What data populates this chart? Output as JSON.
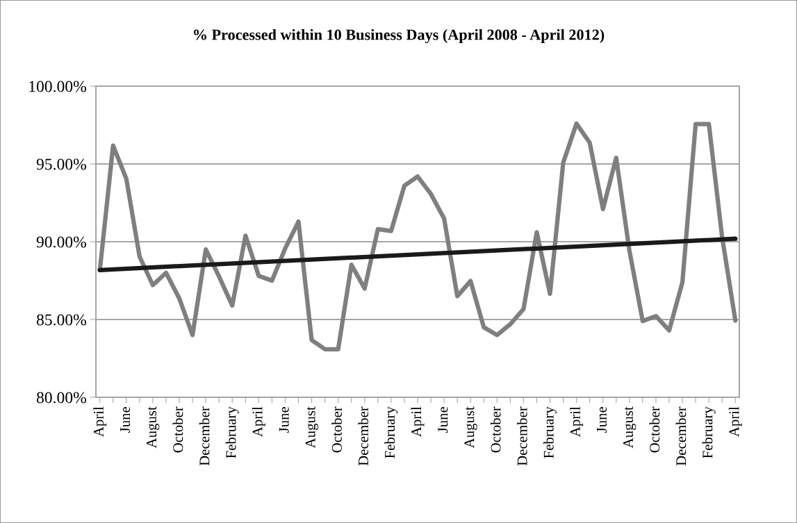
{
  "chart_data": {
    "type": "line",
    "title": "% Processed within 10 Business Days (April 2008 - April 2012)",
    "categories": [
      "April",
      null,
      "June",
      null,
      "August",
      null,
      "October",
      null,
      "December",
      null,
      "February",
      null,
      "April",
      null,
      "June",
      null,
      "August",
      null,
      "October",
      null,
      "December",
      null,
      "February",
      null,
      "April",
      null,
      "June",
      null,
      "August",
      null,
      "October",
      null,
      "December",
      null,
      "February",
      null,
      "April",
      null,
      "June",
      null,
      "August",
      null,
      "October",
      null,
      "December",
      null,
      "February",
      null,
      "April"
    ],
    "series": [
      {
        "color": "#7f7f7f",
        "values": [
          88.18,
          96.18,
          94.04,
          89.04,
          87.21,
          88.0,
          86.35,
          84.0,
          89.5,
          87.77,
          85.9,
          90.39,
          87.8,
          87.5,
          89.57,
          91.29,
          83.68,
          83.09,
          83.09,
          88.52,
          86.99,
          90.81,
          90.69,
          93.6,
          94.19,
          93.07,
          91.5,
          86.5,
          87.47,
          84.5,
          84.0,
          84.7,
          85.67,
          90.61,
          86.65,
          95.09,
          97.59,
          96.36,
          92.1,
          95.39,
          89.42,
          84.9,
          85.22,
          84.3,
          87.39,
          97.56,
          97.56,
          90.3,
          84.93
        ]
      },
      {
        "color": "#1a1a1a",
        "values": [
          88.18,
          null,
          null,
          null,
          null,
          null,
          null,
          null,
          null,
          null,
          null,
          null,
          null,
          null,
          null,
          null,
          null,
          null,
          null,
          null,
          null,
          null,
          null,
          null,
          null,
          null,
          null,
          null,
          null,
          null,
          null,
          null,
          null,
          null,
          null,
          null,
          null,
          null,
          null,
          null,
          null,
          null,
          null,
          null,
          null,
          null,
          null,
          null,
          90.19
        ]
      }
    ],
    "ylim": [
      80,
      100
    ],
    "yticks": [
      {
        "value": 80,
        "label": "80.00%"
      },
      {
        "value": 85,
        "label": "85.00%"
      },
      {
        "value": 90,
        "label": "90.00%"
      },
      {
        "value": 95,
        "label": "95.00%"
      },
      {
        "value": 100,
        "label": "100.00%"
      }
    ],
    "grid": "y",
    "legend": false,
    "marker": "none",
    "line_style": "solid"
  }
}
